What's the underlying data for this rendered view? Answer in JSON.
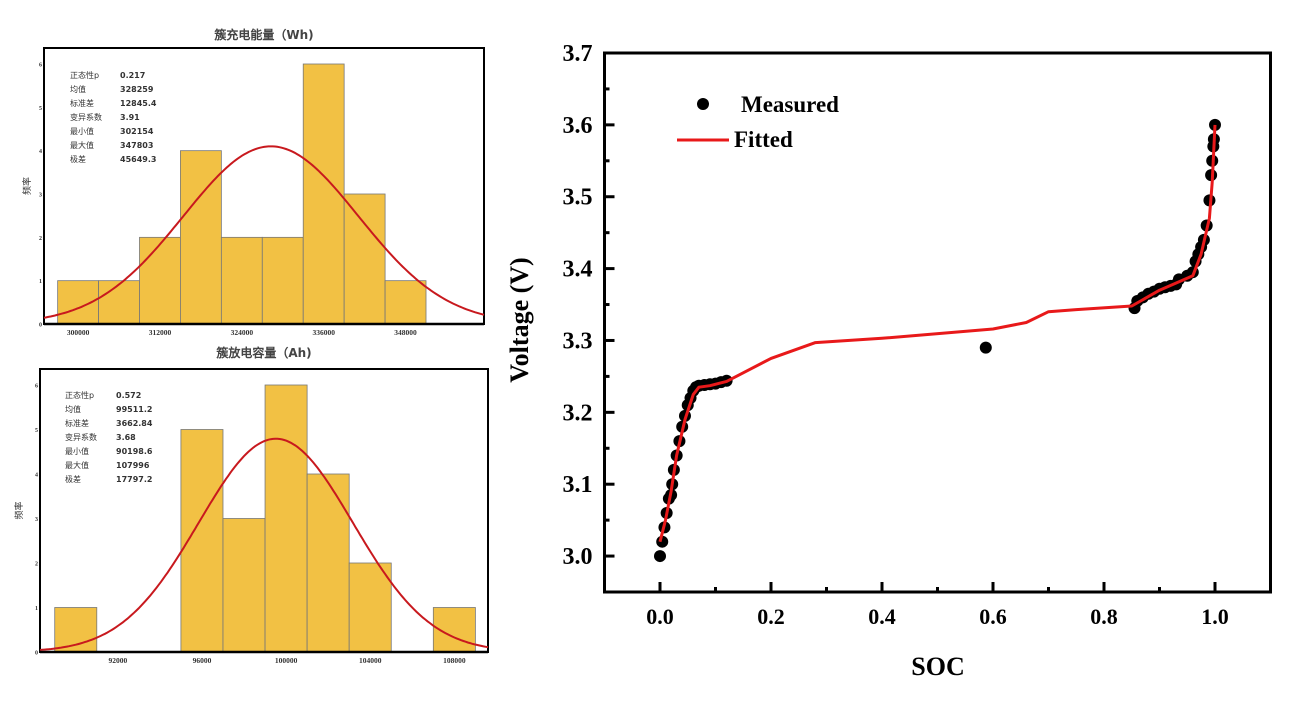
{
  "chart_data": [
    {
      "type": "bar",
      "title": "簇充电能量（Wh)",
      "xlabel": "",
      "ylabel": "频率",
      "bin_edges": [
        297000,
        303000,
        309000,
        315000,
        321000,
        327000,
        333000,
        339000,
        345000,
        351000
      ],
      "values": [
        1,
        1,
        2,
        4,
        2,
        2,
        6,
        3,
        1
      ],
      "xlim": [
        295000,
        359500
      ],
      "ylim": [
        0,
        6
      ],
      "xticks": [
        300000,
        312000,
        324000,
        336000,
        348000
      ],
      "yticks": [
        0,
        1,
        2,
        3,
        4,
        5,
        6
      ],
      "normal_fit": {
        "mean": 328259,
        "sd": 12845.4,
        "n": 22,
        "color": "#c8191e"
      },
      "bar_color": "#f2c144",
      "stats": [
        {
          "label": "正态性p",
          "value": "0.217"
        },
        {
          "label": "均值",
          "value": "328259"
        },
        {
          "label": "标准差",
          "value": "12845.4"
        },
        {
          "label": "变异系数",
          "value": "3.91"
        },
        {
          "label": "最小值",
          "value": "302154"
        },
        {
          "label": "最大值",
          "value": "347803"
        },
        {
          "label": "极差",
          "value": "45649.3"
        }
      ]
    },
    {
      "type": "bar",
      "title": "簇放电容量（Ah)",
      "xlabel": "",
      "ylabel": "频率",
      "bin_edges": [
        89000,
        91000,
        93000,
        95000,
        97000,
        99000,
        101000,
        103000,
        105000,
        107000,
        109000
      ],
      "values": [
        1,
        0,
        0,
        5,
        3,
        6,
        4,
        2,
        0,
        1
      ],
      "xlim": [
        88300,
        109600
      ],
      "ylim": [
        0,
        6
      ],
      "xticks": [
        92000,
        96000,
        100000,
        104000,
        108000
      ],
      "yticks": [
        0,
        1,
        2,
        3,
        4,
        5,
        6
      ],
      "normal_fit": {
        "mean": 99511.2,
        "sd": 3662.84,
        "n": 22,
        "color": "#c8191e"
      },
      "bar_color": "#f2c144",
      "stats": [
        {
          "label": "正态性p",
          "value": "0.572"
        },
        {
          "label": "均值",
          "value": "99511.2"
        },
        {
          "label": "标准差",
          "value": "3662.84"
        },
        {
          "label": "变异系数",
          "value": "3.68"
        },
        {
          "label": "最小值",
          "value": "90198.6"
        },
        {
          "label": "最大值",
          "value": "107996"
        },
        {
          "label": "极差",
          "value": "17797.2"
        }
      ]
    },
    {
      "type": "line",
      "title": "",
      "xlabel": "SOC",
      "ylabel": "Voltage (V)",
      "xlim": [
        -0.1,
        1.1
      ],
      "ylim": [
        2.95,
        3.7
      ],
      "xticks": [
        "0.0",
        "0.2",
        "0.4",
        "0.6",
        "0.8",
        "1.0"
      ],
      "yticks": [
        "3.0",
        "3.1",
        "3.2",
        "3.3",
        "3.4",
        "3.5",
        "3.6",
        "3.7"
      ],
      "legend": {
        "position": "top-left"
      },
      "series": [
        {
          "name": "Measured",
          "kind": "scatter",
          "color": "#000000",
          "x": [
            0.0,
            0.004,
            0.008,
            0.012,
            0.016,
            0.02,
            0.022,
            0.025,
            0.03,
            0.035,
            0.04,
            0.045,
            0.05,
            0.055,
            0.06,
            0.065,
            0.07,
            0.08,
            0.09,
            0.1,
            0.11,
            0.12,
            0.587,
            0.855,
            0.86,
            0.87,
            0.88,
            0.89,
            0.9,
            0.91,
            0.92,
            0.93,
            0.935,
            0.95,
            0.96,
            0.965,
            0.97,
            0.975,
            0.98,
            0.985,
            0.99,
            0.993,
            0.995,
            0.997,
            0.998,
            1.0
          ],
          "y": [
            3.0,
            3.02,
            3.04,
            3.06,
            3.08,
            3.085,
            3.1,
            3.12,
            3.14,
            3.16,
            3.18,
            3.195,
            3.21,
            3.22,
            3.23,
            3.235,
            3.237,
            3.238,
            3.239,
            3.24,
            3.242,
            3.244,
            3.29,
            3.345,
            3.355,
            3.36,
            3.365,
            3.368,
            3.372,
            3.374,
            3.376,
            3.378,
            3.385,
            3.39,
            3.395,
            3.41,
            3.42,
            3.43,
            3.44,
            3.46,
            3.495,
            3.53,
            3.55,
            3.57,
            3.58,
            3.6
          ]
        },
        {
          "name": "Fitted",
          "kind": "line",
          "color": "#e8191a",
          "x": [
            0.0,
            0.01,
            0.02,
            0.03,
            0.045,
            0.06,
            0.07,
            0.09,
            0.12,
            0.2,
            0.28,
            0.4,
            0.6,
            0.66,
            0.7,
            0.75,
            0.85,
            0.9,
            0.93,
            0.96,
            0.975,
            0.99,
            0.995,
            1.0
          ],
          "y": [
            3.02,
            3.05,
            3.09,
            3.14,
            3.19,
            3.225,
            3.235,
            3.237,
            3.243,
            3.275,
            3.297,
            3.303,
            3.316,
            3.325,
            3.34,
            3.343,
            3.348,
            3.37,
            3.38,
            3.39,
            3.42,
            3.47,
            3.52,
            3.6
          ]
        }
      ]
    }
  ]
}
